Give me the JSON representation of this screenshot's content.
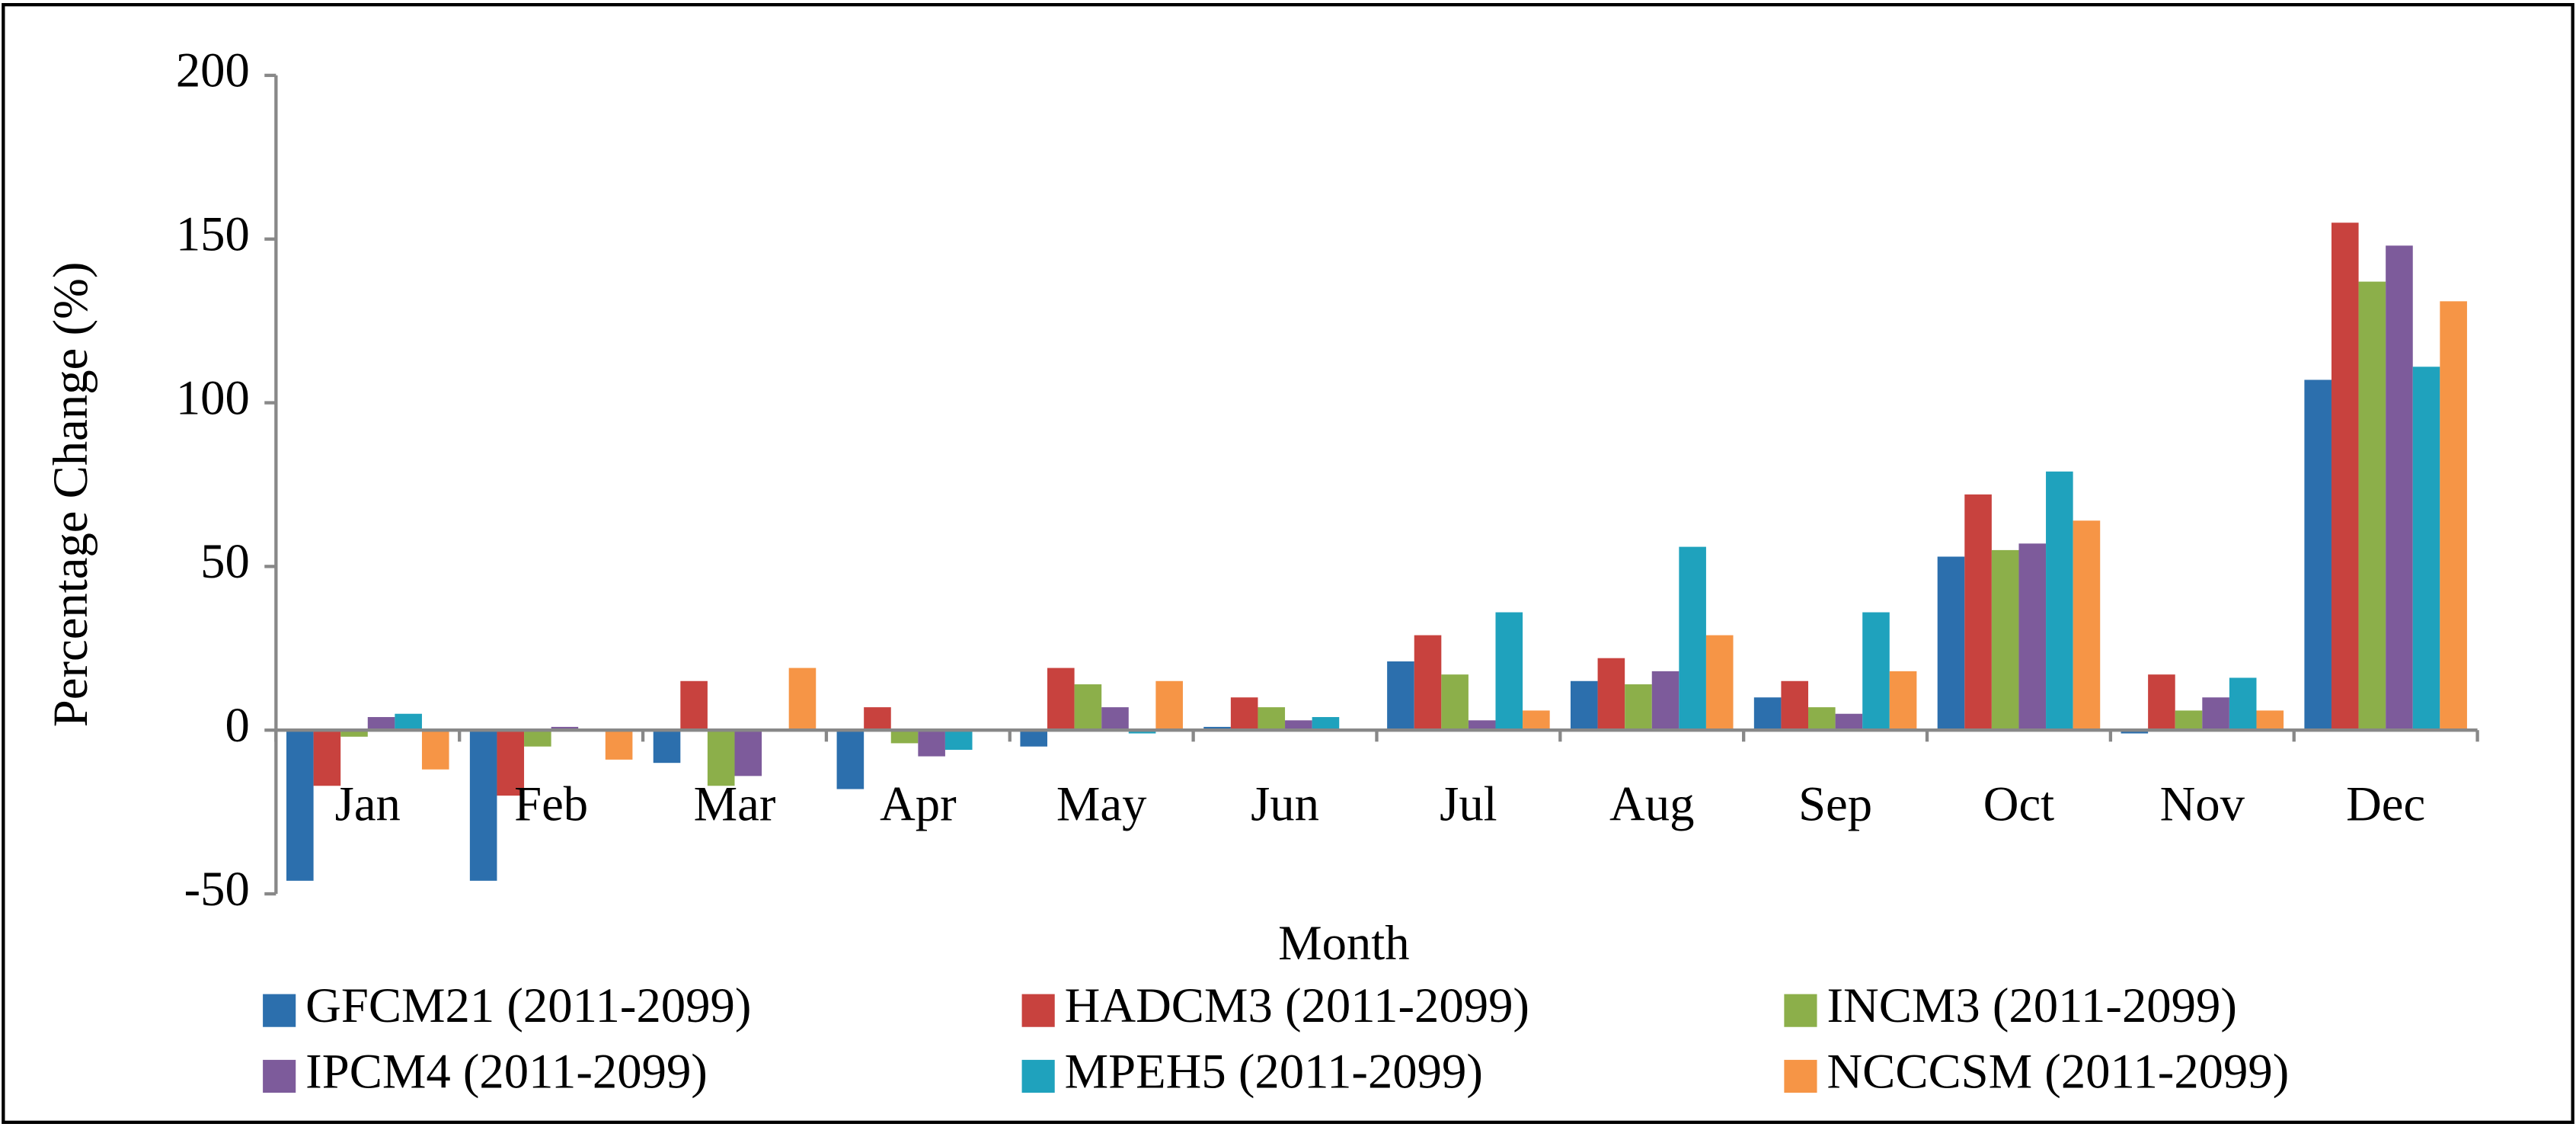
{
  "chart_data": {
    "type": "bar",
    "x_label": "Month",
    "y_label": "Percentage Change (%)",
    "categories": [
      "Jan",
      "Feb",
      "Mar",
      "Apr",
      "May",
      "Jun",
      "Jul",
      "Aug",
      "Sep",
      "Oct",
      "Nov",
      "Dec"
    ],
    "series": [
      {
        "name": "GFCM21 (2011-2099)",
        "color": "#2c6fad",
        "values": [
          -46,
          -46,
          -10,
          -18,
          -5,
          1,
          21,
          15,
          10,
          53,
          -1,
          107
        ]
      },
      {
        "name": "HADCM3 (2011-2099)",
        "color": "#c8423e",
        "values": [
          -17,
          -20,
          15,
          7,
          19,
          10,
          29,
          22,
          15,
          72,
          17,
          155
        ]
      },
      {
        "name": "INCM3 (2011-2099)",
        "color": "#8caf4a",
        "values": [
          -2,
          -5,
          -17,
          -4,
          14,
          7,
          17,
          14,
          7,
          55,
          6,
          137
        ]
      },
      {
        "name": "IPCM4 (2011-2099)",
        "color": "#7d5b9b",
        "values": [
          4,
          1,
          -14,
          -8,
          7,
          3,
          3,
          18,
          5,
          57,
          10,
          148
        ]
      },
      {
        "name": "MPEH5 (2011-2099)",
        "color": "#1fa2bd",
        "values": [
          5,
          0,
          0,
          -6,
          -1,
          4,
          36,
          56,
          36,
          79,
          16,
          111
        ]
      },
      {
        "name": "NCCCSM (2011-2099)",
        "color": "#f69546",
        "values": [
          -12,
          -9,
          19,
          0,
          15,
          0,
          6,
          29,
          18,
          64,
          6,
          131
        ]
      }
    ],
    "ylim": [
      -50,
      200
    ],
    "yticks": [
      -50,
      0,
      50,
      100,
      150,
      200
    ],
    "legend": "bottom"
  }
}
